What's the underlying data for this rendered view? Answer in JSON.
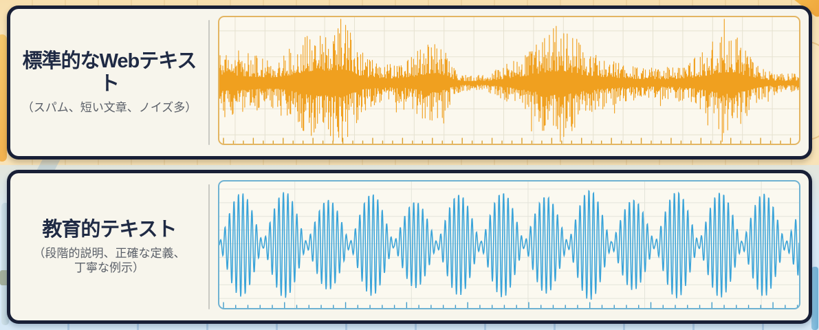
{
  "colors": {
    "panel_border": "#181F36",
    "panel_bg": "#F7F5EC",
    "title": "#1F2A44",
    "subtitle": "#5A5F68",
    "divider": "#C9C9C3",
    "bg_top": "#F8E3B8",
    "bg_bottom": "#D6E8F6"
  },
  "panels": [
    {
      "id": "standard-web-text",
      "title": "標準的なWebテキスト",
      "subtitle_lines": [
        "（スパム、短い文章、ノイズ多）"
      ],
      "wave": {
        "style": "noise",
        "color": "#F0A01F",
        "border_color": "#E3B562",
        "bg": "#FBF8EE",
        "grid_color": "#E5E1D0",
        "tick_color": "#D99F2E",
        "grid_vspace": 43.5,
        "grid_voffset": 23,
        "grid_hspace": 38,
        "grid_hoffset": 20,
        "tick_minor": 14.5,
        "tick_major": 43.5,
        "amp": 88,
        "seed": 11,
        "bursts": [
          {
            "c": 0.165,
            "w": 0.035,
            "a": 0.55
          },
          {
            "c": 0.215,
            "w": 0.02,
            "a": 0.35
          },
          {
            "c": 0.37,
            "w": 0.022,
            "a": 0.5
          },
          {
            "c": 0.585,
            "w": 0.03,
            "a": 0.45
          },
          {
            "c": 0.7,
            "w": 0.04,
            "a": -0.15
          },
          {
            "c": 0.88,
            "w": 0.027,
            "a": 0.42
          }
        ]
      }
    },
    {
      "id": "educational-text",
      "title": "教育的テキスト",
      "subtitle_lines": [
        "（段階的説明、正確な定義、",
        "丁寧な例示）"
      ],
      "wave": {
        "style": "beats",
        "color": "#3BA4D9",
        "border_color": "#6FB2D2",
        "bg": "#FBF9F0",
        "grid_color": "#E4E4DA",
        "tick_color": "#3F9CCB",
        "grid_vspace": 170,
        "grid_voffset": 110,
        "grid_hspace": 20,
        "grid_hoffset": 11,
        "tick_minor": 17.8,
        "tick_major": 89,
        "amp": 79,
        "lobe_width": 63.5,
        "carrier_period": 6.55,
        "seed": 5
      }
    }
  ]
}
